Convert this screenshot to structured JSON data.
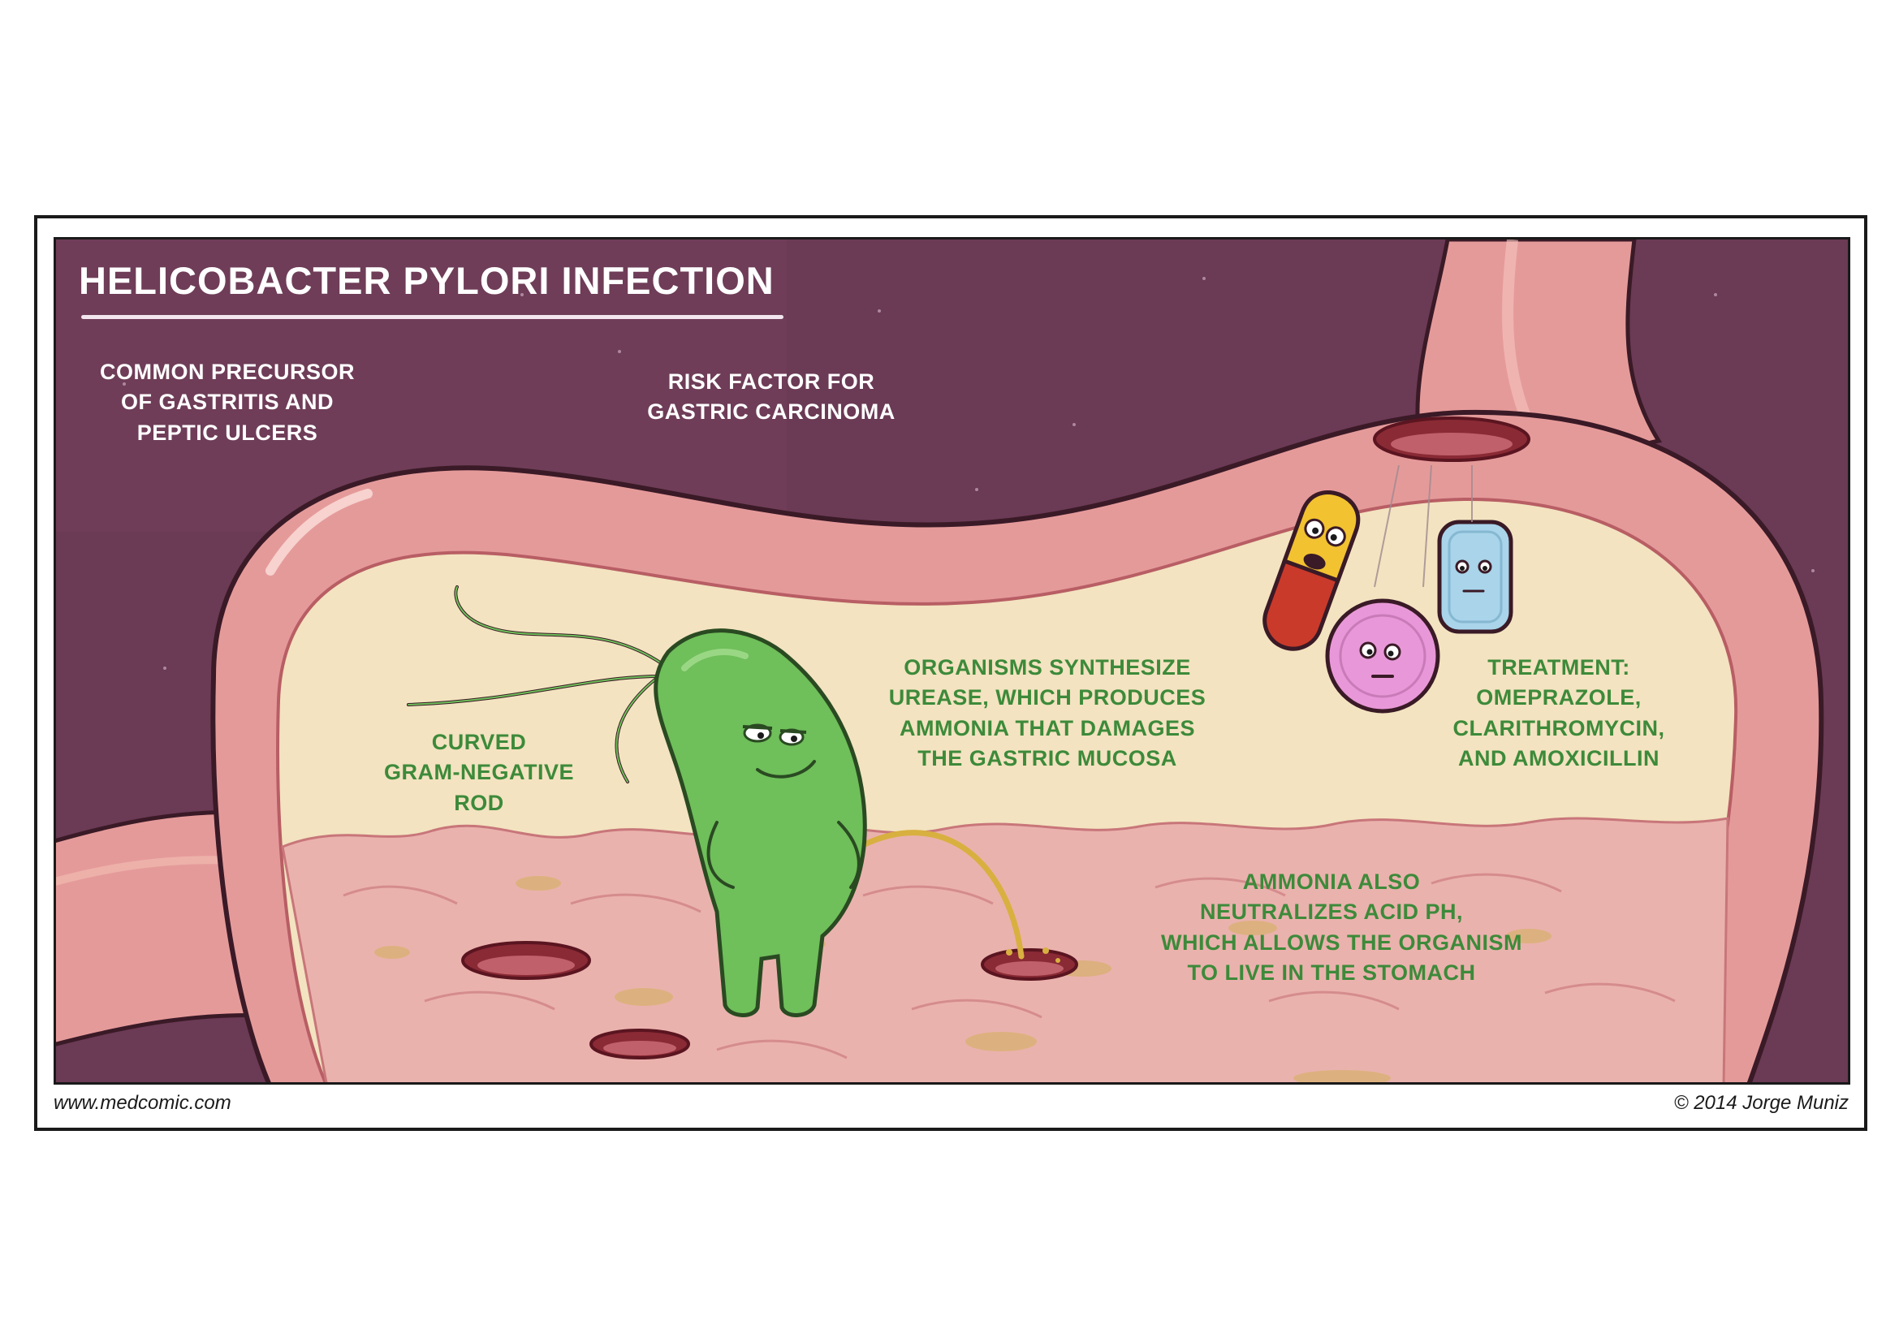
{
  "title": "HELICOBACTER PYLORI INFECTION",
  "captions": {
    "precursor": [
      "COMMON PRECURSOR",
      "OF GASTRITIS AND",
      "PEPTIC ULCERS"
    ],
    "risk": [
      "RISK FACTOR FOR",
      "GASTRIC CARCINOMA"
    ],
    "rod": [
      "CURVED",
      "GRAM-NEGATIVE",
      "ROD"
    ],
    "urease": [
      "ORGANISMS SYNTHESIZE",
      "UREASE, WHICH PRODUCES",
      "AMMONIA THAT DAMAGES",
      "THE GASTRIC MUCOSA"
    ],
    "treatment": [
      "TREATMENT:",
      "OMEPRAZOLE,",
      "CLARITHROMYCIN,",
      "AND AMOXICILLIN"
    ],
    "ammonia": [
      "AMMONIA ALSO",
      "NEUTRALIZES ACID PH,",
      "WHICH ALLOWS THE ORGANISM",
      "TO LIVE IN THE STOMACH"
    ]
  },
  "credits": {
    "website": "www.medcomic.com",
    "copyright": "© 2014 Jorge Muniz"
  },
  "colors": {
    "background": "#6b3a55",
    "stomach_wall": "#e59a9a",
    "stomach_lining": "#f2c2b4",
    "cavity": "#f3e3c0",
    "mucosa": "#eab2ad",
    "bacterium": "#6fbf5a",
    "caption_green": "#3d8a3a",
    "caption_white": "#ffffff",
    "pill_yellow": "#f2c230",
    "pill_red": "#c93a2a",
    "pill_pink": "#e898d8",
    "pill_blue": "#a9d4ea"
  }
}
